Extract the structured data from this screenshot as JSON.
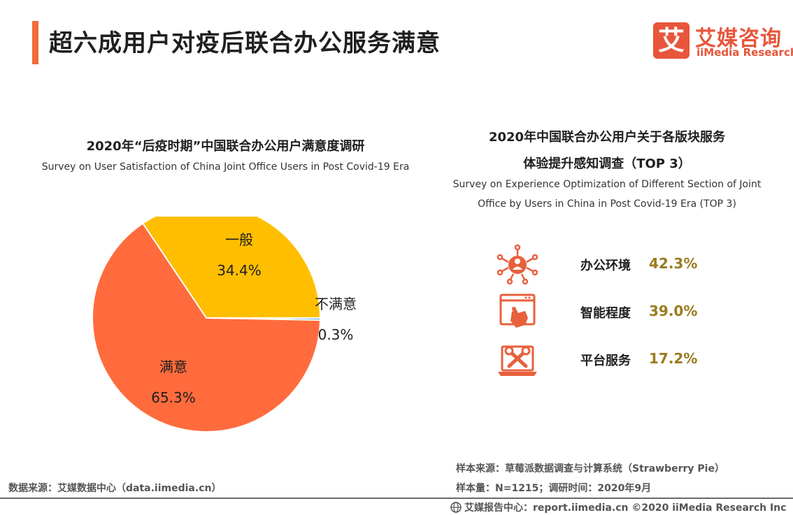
{
  "page_title": "超六成用户对疫后联合办公服务满意",
  "logo": {
    "mark": "艾",
    "cn": "艾媒咨询",
    "en": "iiMedia Research"
  },
  "left_chart": {
    "title": "2020年“后疫时期”中国联合办公用户满意度调研",
    "subtitle": "Survey on User Satisfaction of China Joint Office Users in Post Covid-19 Era"
  },
  "chart_data": {
    "type": "pie",
    "title": "2020年“后疫时期”中国联合办公用户满意度调研",
    "subtitle": "Survey on User Satisfaction of China Joint Office Users in Post Covid-19 Era",
    "slices": [
      {
        "name": "一般",
        "value": 34.4,
        "label": "34.4%",
        "color": "#FFBF00"
      },
      {
        "name": "不满意",
        "value": 0.3,
        "label": "0.3%",
        "color": "#4a8fd8"
      },
      {
        "name": "满意",
        "value": 65.3,
        "label": "65.3%",
        "color": "#FF6B3D"
      }
    ]
  },
  "right_panel": {
    "title_line1": "2020年中国联合办公用户关于各版块服务",
    "title_line2": "体验提升感知调查（TOP 3）",
    "subtitle_line1": "Survey on Experience Optimization of Different Section of Joint",
    "subtitle_line2": "Office by Users in China in Post Covid-19 Era (TOP 3)",
    "items": [
      {
        "label": "办公环境",
        "value": "42.3%",
        "icon": "people-network-icon"
      },
      {
        "label": "智能程度",
        "value": "39.0%",
        "icon": "touch-screen-icon"
      },
      {
        "label": "平台服务",
        "value": "17.2%",
        "icon": "tools-monitor-icon"
      }
    ]
  },
  "footer": {
    "source_left": "数据来源：艾媒数据中心（data.iimedia.cn）",
    "sample_source": "样本来源：草莓派数据调查与计算系统（Strawberry Pie）",
    "sample_size": "样本量：N=1215；调研时间：2020年9月",
    "report": "艾媒报告中心：report.iimedia.cn ©2020  iiMedia Research  Inc"
  },
  "colors": {
    "accent": "#f26b3a",
    "brand": "#e8553a",
    "value_gold": "#9a7b1e",
    "icon_orange": "#e8603c"
  }
}
